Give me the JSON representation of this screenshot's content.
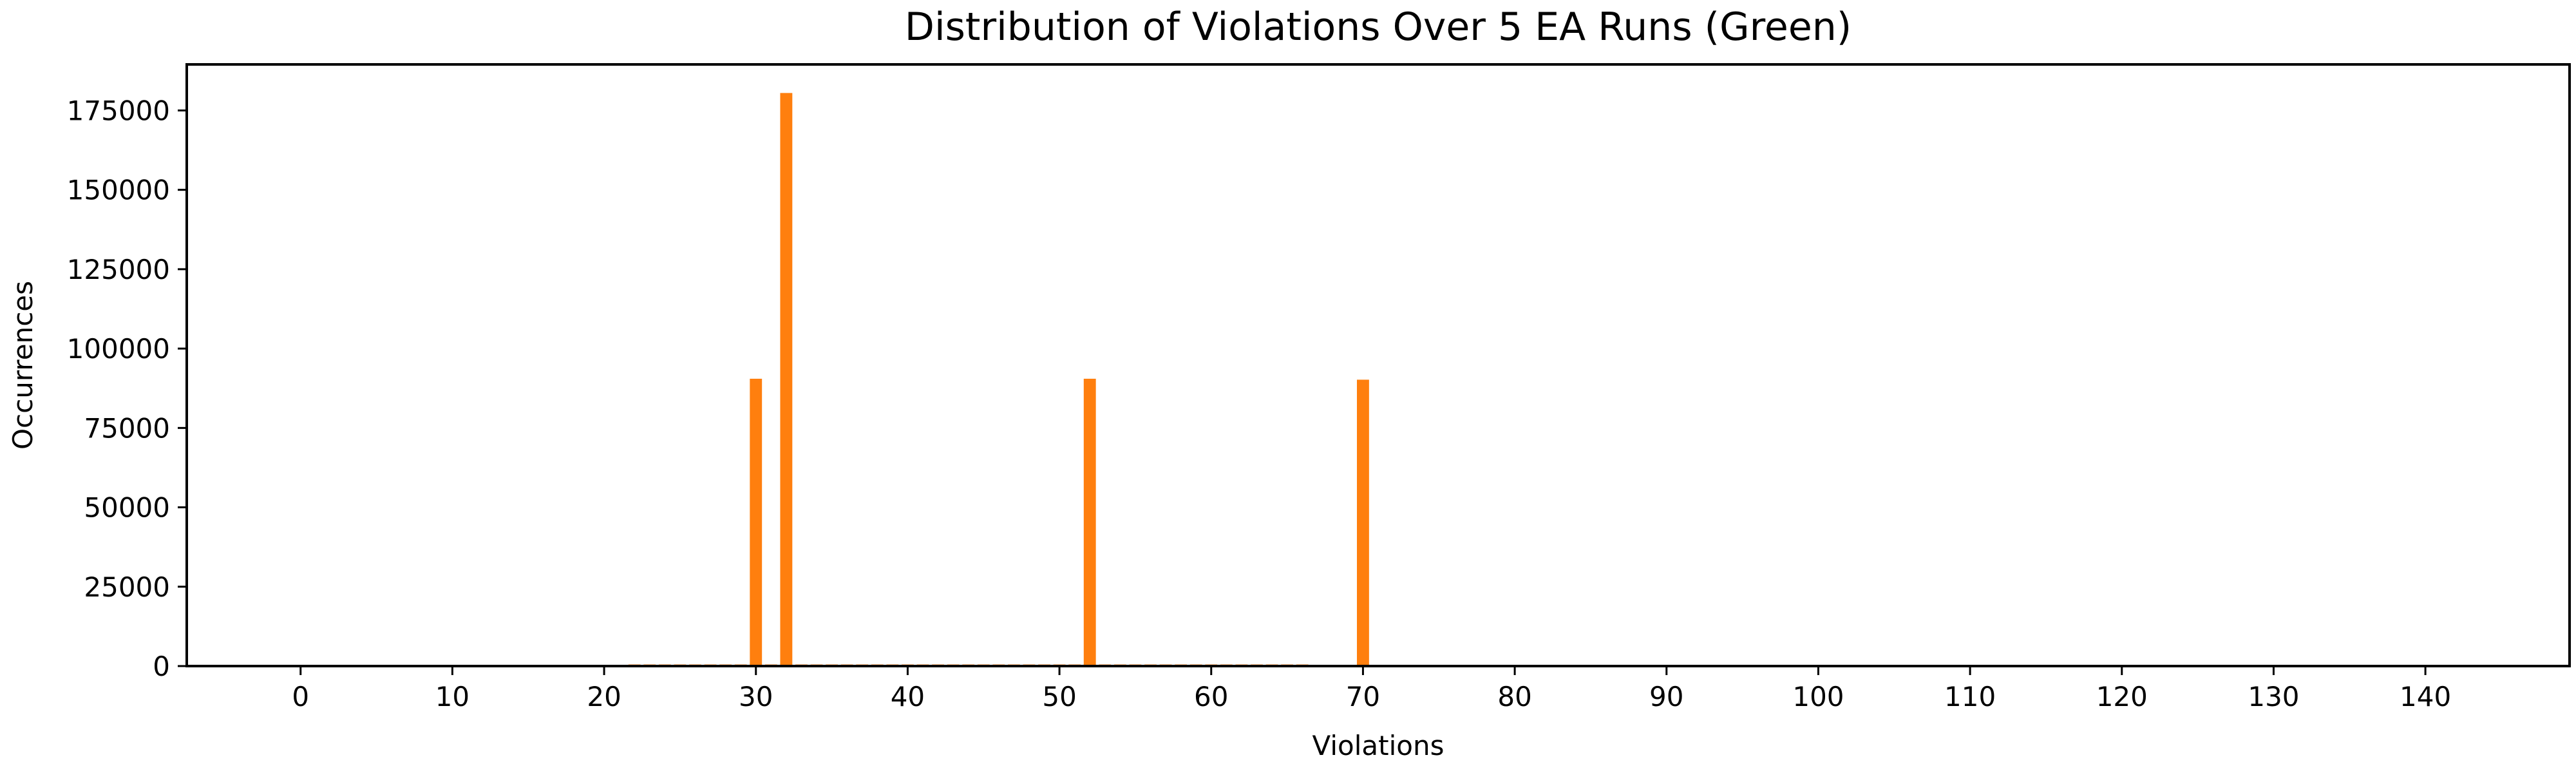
{
  "chart_data": {
    "type": "bar",
    "title": "Distribution of Violations Over 5 EA Runs (Green)",
    "xlabel": "Violations",
    "ylabel": "Occurrences",
    "xlim": [
      -7.5,
      149.5
    ],
    "ylim": [
      0,
      189500
    ],
    "xticks": [
      0,
      10,
      20,
      30,
      40,
      50,
      60,
      70,
      80,
      90,
      100,
      110,
      120,
      130,
      140
    ],
    "yticks": [
      0,
      25000,
      50000,
      75000,
      100000,
      125000,
      150000,
      175000
    ],
    "bar_color": "#ff7f0e",
    "series": [
      {
        "name": "Green",
        "x": [
          30,
          32,
          52,
          70
        ],
        "values": [
          90500,
          180500,
          90500,
          90200
        ]
      }
    ],
    "minor_bars": {
      "x_start": 22,
      "x_end": 66,
      "approx_value": 500
    }
  }
}
